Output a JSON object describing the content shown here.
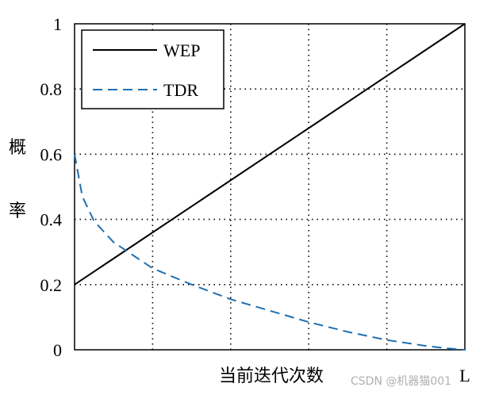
{
  "chart_data": {
    "type": "line",
    "xlabel": "当前迭代次数",
    "ylabel": "概率",
    "ylabel_chars": [
      "概",
      "率"
    ],
    "ylim": [
      0,
      1
    ],
    "xlim": [
      0,
      1
    ],
    "yticks": [
      "0",
      "0.2",
      "0.4",
      "0.6",
      "0.8",
      "1"
    ],
    "xticks": [
      "L"
    ],
    "grid": "dotted",
    "legend": "top-left",
    "series": [
      {
        "name": "WEP",
        "color": "#000000",
        "style": "solid",
        "x": [
          0,
          1
        ],
        "y": [
          0.2,
          1.0
        ]
      },
      {
        "name": "TDR",
        "color": "#1f6fb2",
        "style": "dashed",
        "x": [
          0,
          0.02,
          0.05,
          0.1,
          0.2,
          0.3,
          0.4,
          0.5,
          0.6,
          0.7,
          0.8,
          0.9,
          0.95,
          1.0
        ],
        "y": [
          0.6,
          0.47,
          0.395,
          0.33,
          0.25,
          0.2,
          0.155,
          0.12,
          0.085,
          0.055,
          0.03,
          0.012,
          0.005,
          0.0
        ]
      }
    ]
  },
  "watermark": "CSDN @机器猫001"
}
